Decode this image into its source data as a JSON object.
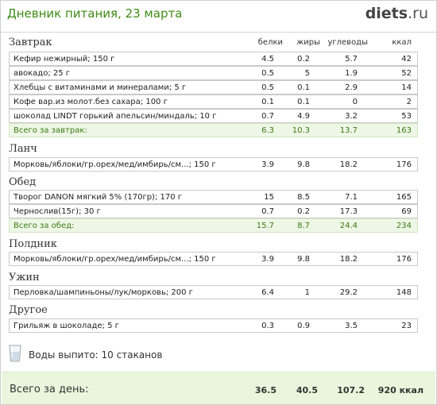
{
  "header": {
    "title": "Дневник питания, 23 марта",
    "logo_main": "diets",
    "logo_tld": ".ru"
  },
  "columns": {
    "protein": "белки",
    "fat": "жиры",
    "carbs": "углеводы",
    "kcal": "ккал"
  },
  "sections": {
    "breakfast": {
      "title": "Завтрак",
      "items": [
        {
          "name": "Кефир нежирный; 150 г",
          "protein": "4.5",
          "fat": "0.2",
          "carbs": "5.7",
          "kcal": "42"
        },
        {
          "name": "авокадо; 25 г",
          "protein": "0.5",
          "fat": "5",
          "carbs": "1.9",
          "kcal": "52"
        },
        {
          "name": "Хлебцы с витаминами и минералами; 5 г",
          "protein": "0.5",
          "fat": "0.1",
          "carbs": "2.9",
          "kcal": "14"
        },
        {
          "name": "Кофе вар.из молот.без сахара; 100 г",
          "protein": "0.1",
          "fat": "0.1",
          "carbs": "0",
          "kcal": "2"
        },
        {
          "name": "шоколад LINDT горький апельсин/миндаль; 10 г",
          "protein": "0.7",
          "fat": "4.9",
          "carbs": "3.2",
          "kcal": "53"
        }
      ],
      "total": {
        "label": "Всего за завтрак:",
        "protein": "6.3",
        "fat": "10.3",
        "carbs": "13.7",
        "kcal": "163"
      }
    },
    "lunch": {
      "title": "Ланч",
      "items": [
        {
          "name": "Морковь/яблоки/гр.орех/мед/имбирь/см...; 150 г",
          "protein": "3.9",
          "fat": "9.8",
          "carbs": "18.2",
          "kcal": "176"
        }
      ]
    },
    "dinner": {
      "title": "Обед",
      "items": [
        {
          "name": "Творог DANON мягкий 5% (170гр); 170 г",
          "protein": "15",
          "fat": "8.5",
          "carbs": "7.1",
          "kcal": "165"
        },
        {
          "name": "Чернослив(15г); 30 г",
          "protein": "0.7",
          "fat": "0.2",
          "carbs": "17.3",
          "kcal": "69"
        }
      ],
      "total": {
        "label": "Всего за обед:",
        "protein": "15.7",
        "fat": "8.7",
        "carbs": "24.4",
        "kcal": "234"
      }
    },
    "snack": {
      "title": "Полдник",
      "items": [
        {
          "name": "Морковь/яблоки/гр.орех/мед/имбирь/см...; 150 г",
          "protein": "3.9",
          "fat": "9.8",
          "carbs": "18.2",
          "kcal": "176"
        }
      ]
    },
    "supper": {
      "title": "Ужин",
      "items": [
        {
          "name": "Перловка/шампиньоны/лук/морковь; 200 г",
          "protein": "6.4",
          "fat": "1",
          "carbs": "29.2",
          "kcal": "148"
        }
      ]
    },
    "other": {
      "title": "Другое",
      "items": [
        {
          "name": "Грильяж в шоколаде; 5 г",
          "protein": "0.3",
          "fat": "0.9",
          "carbs": "3.5",
          "kcal": "23"
        }
      ]
    }
  },
  "water": {
    "text": "Воды выпито: 10 стаканов",
    "icon": "glass-icon"
  },
  "day_total": {
    "label": "Всего за день:",
    "protein": "36.5",
    "fat": "40.5",
    "carbs": "107.2",
    "kcal": "920 ккал"
  },
  "colors": {
    "title_green": "#3f8a16",
    "total_row_bg": "#eef7e6",
    "day_total_bg": "#e9f6dd"
  }
}
